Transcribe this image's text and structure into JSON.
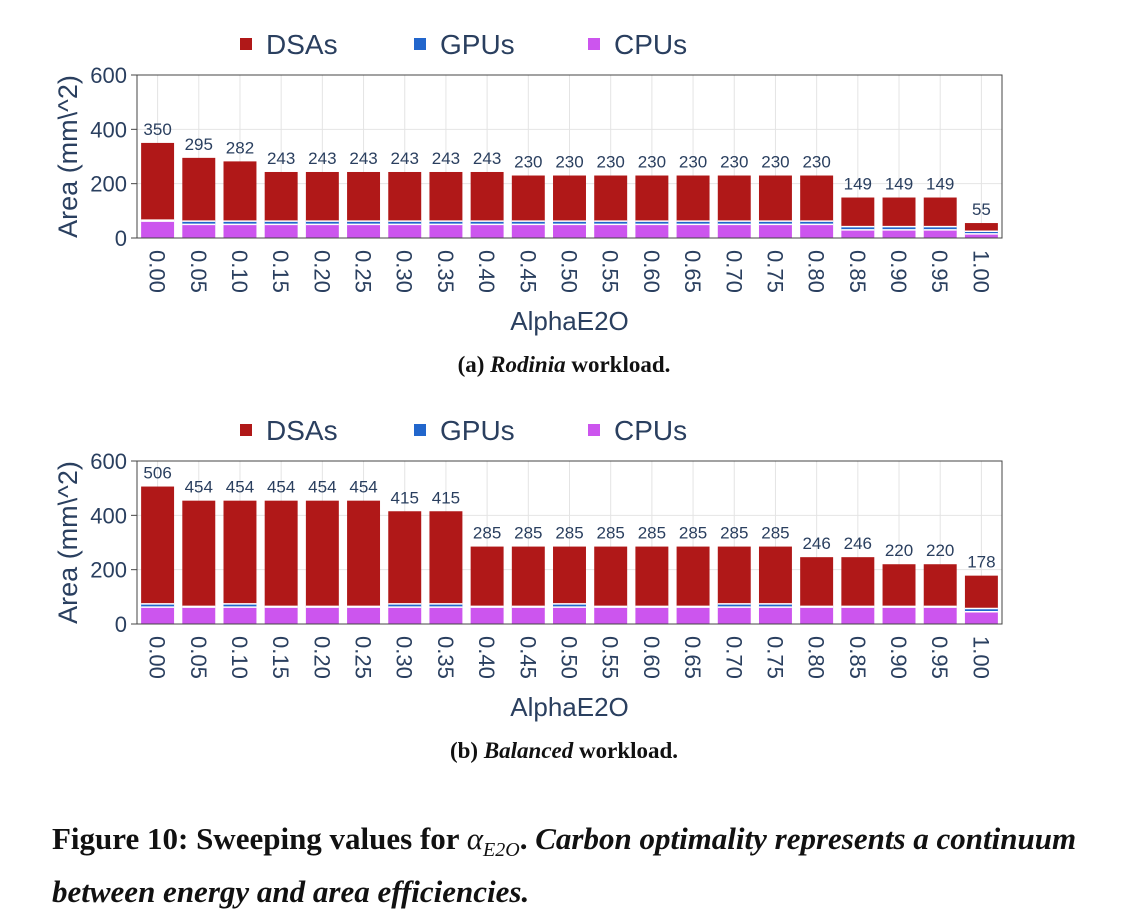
{
  "chart_data": [
    {
      "type": "bar",
      "stacked": true,
      "categories": [
        "0.00",
        "0.05",
        "0.10",
        "0.15",
        "0.20",
        "0.25",
        "0.30",
        "0.35",
        "0.40",
        "0.45",
        "0.50",
        "0.55",
        "0.60",
        "0.65",
        "0.70",
        "0.75",
        "0.80",
        "0.85",
        "0.90",
        "0.95",
        "1.00"
      ],
      "totals": [
        350,
        295,
        282,
        243,
        243,
        243,
        243,
        243,
        243,
        230,
        230,
        230,
        230,
        230,
        230,
        230,
        230,
        149,
        149,
        149,
        55
      ],
      "series": [
        {
          "name": "CPUs",
          "color": "#cc55ee",
          "values": [
            62,
            50,
            50,
            50,
            50,
            50,
            50,
            50,
            50,
            50,
            50,
            50,
            50,
            50,
            50,
            50,
            50,
            30,
            30,
            30,
            15
          ]
        },
        {
          "name": "GPUs",
          "color": "#2266cc",
          "values": [
            4,
            12,
            12,
            12,
            12,
            12,
            12,
            12,
            12,
            12,
            12,
            12,
            12,
            12,
            12,
            12,
            12,
            12,
            12,
            12,
            10
          ]
        },
        {
          "name": "DSAs",
          "color": "#b01818",
          "values": [
            284,
            233,
            220,
            181,
            181,
            181,
            181,
            181,
            181,
            168,
            168,
            168,
            168,
            168,
            168,
            168,
            168,
            107,
            107,
            107,
            30
          ]
        }
      ],
      "legend": [
        "DSAs",
        "GPUs",
        "CPUs"
      ],
      "xlabel": "AlphaE2O",
      "ylabel": "Area (mm\\^2)",
      "ylim": [
        0,
        600
      ],
      "yticks": [
        0,
        200,
        400,
        600
      ],
      "grid": true,
      "legend_position": "top"
    },
    {
      "type": "bar",
      "stacked": true,
      "categories": [
        "0.00",
        "0.05",
        "0.10",
        "0.15",
        "0.20",
        "0.25",
        "0.30",
        "0.35",
        "0.40",
        "0.45",
        "0.50",
        "0.55",
        "0.60",
        "0.65",
        "0.70",
        "0.75",
        "0.80",
        "0.85",
        "0.90",
        "0.95",
        "1.00"
      ],
      "totals": [
        506,
        454,
        454,
        454,
        454,
        454,
        415,
        415,
        285,
        285,
        285,
        285,
        285,
        285,
        285,
        285,
        246,
        246,
        220,
        220,
        178
      ],
      "series": [
        {
          "name": "CPUs",
          "color": "#cc55ee",
          "values": [
            62,
            62,
            62,
            62,
            62,
            62,
            62,
            62,
            62,
            62,
            62,
            62,
            62,
            62,
            62,
            62,
            62,
            62,
            62,
            62,
            45
          ]
        },
        {
          "name": "GPUs",
          "color": "#2266cc",
          "values": [
            12,
            3,
            12,
            3,
            3,
            3,
            12,
            12,
            3,
            3,
            12,
            3,
            3,
            3,
            12,
            12,
            3,
            3,
            3,
            3,
            12
          ]
        },
        {
          "name": "DSAs",
          "color": "#b01818",
          "values": [
            432,
            389,
            380,
            389,
            389,
            389,
            341,
            341,
            220,
            220,
            211,
            220,
            220,
            220,
            211,
            211,
            181,
            181,
            155,
            155,
            121
          ]
        }
      ],
      "legend": [
        "DSAs",
        "GPUs",
        "CPUs"
      ],
      "xlabel": "AlphaE2O",
      "ylabel": "Area (mm\\^2)",
      "ylim": [
        0,
        600
      ],
      "yticks": [
        0,
        200,
        400,
        600
      ],
      "grid": true,
      "legend_position": "top"
    }
  ],
  "captions": {
    "a_prefix": "(a) ",
    "a_italic": "Rodinia",
    "a_suffix": " workload.",
    "b_prefix": "(b) ",
    "b_italic": "Balanced",
    "b_suffix": " workload."
  },
  "figure_caption": {
    "label": "Figure 10: Sweeping values for ",
    "alpha": "α",
    "alpha_sub": "E2O",
    "after_alpha": ". ",
    "italic_text": "Carbon optimality represents a continuum between energy and area efficiencies."
  }
}
